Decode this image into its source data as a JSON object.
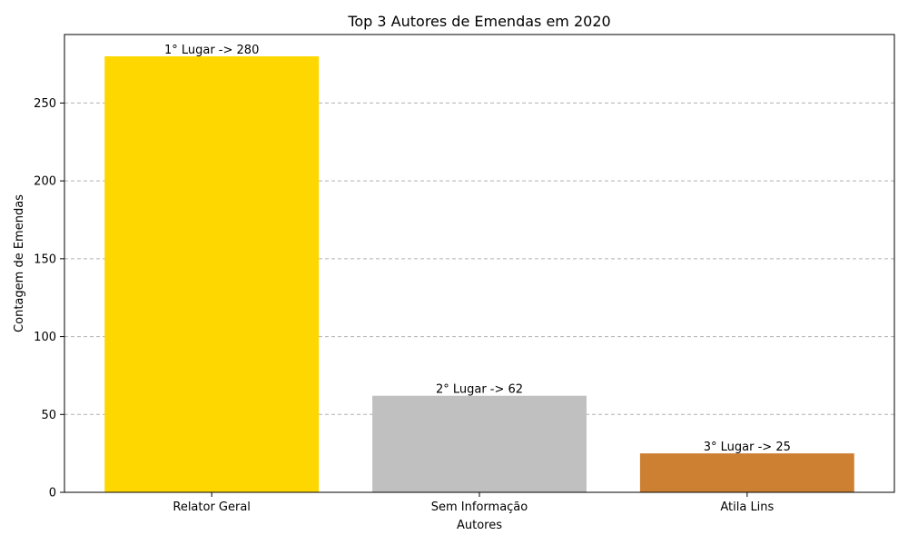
{
  "chart_data": {
    "type": "bar",
    "title": "Top 3 Autores de Emendas em 2020",
    "xlabel": "Autores",
    "ylabel": "Contagem de Emendas",
    "categories": [
      "Relator Geral",
      "Sem Informação",
      "Atila Lins"
    ],
    "values": [
      280,
      62,
      25
    ],
    "bar_labels": [
      "1° Lugar -> 280",
      "2° Lugar -> 62",
      "3° Lugar -> 25"
    ],
    "colors": [
      "#FFD700",
      "#C0C0C0",
      "#CD7F32"
    ],
    "ylim": [
      0,
      294
    ],
    "yticks": [
      0,
      50,
      100,
      150,
      200,
      250
    ],
    "grid": "y-dashed",
    "legend": "none"
  }
}
